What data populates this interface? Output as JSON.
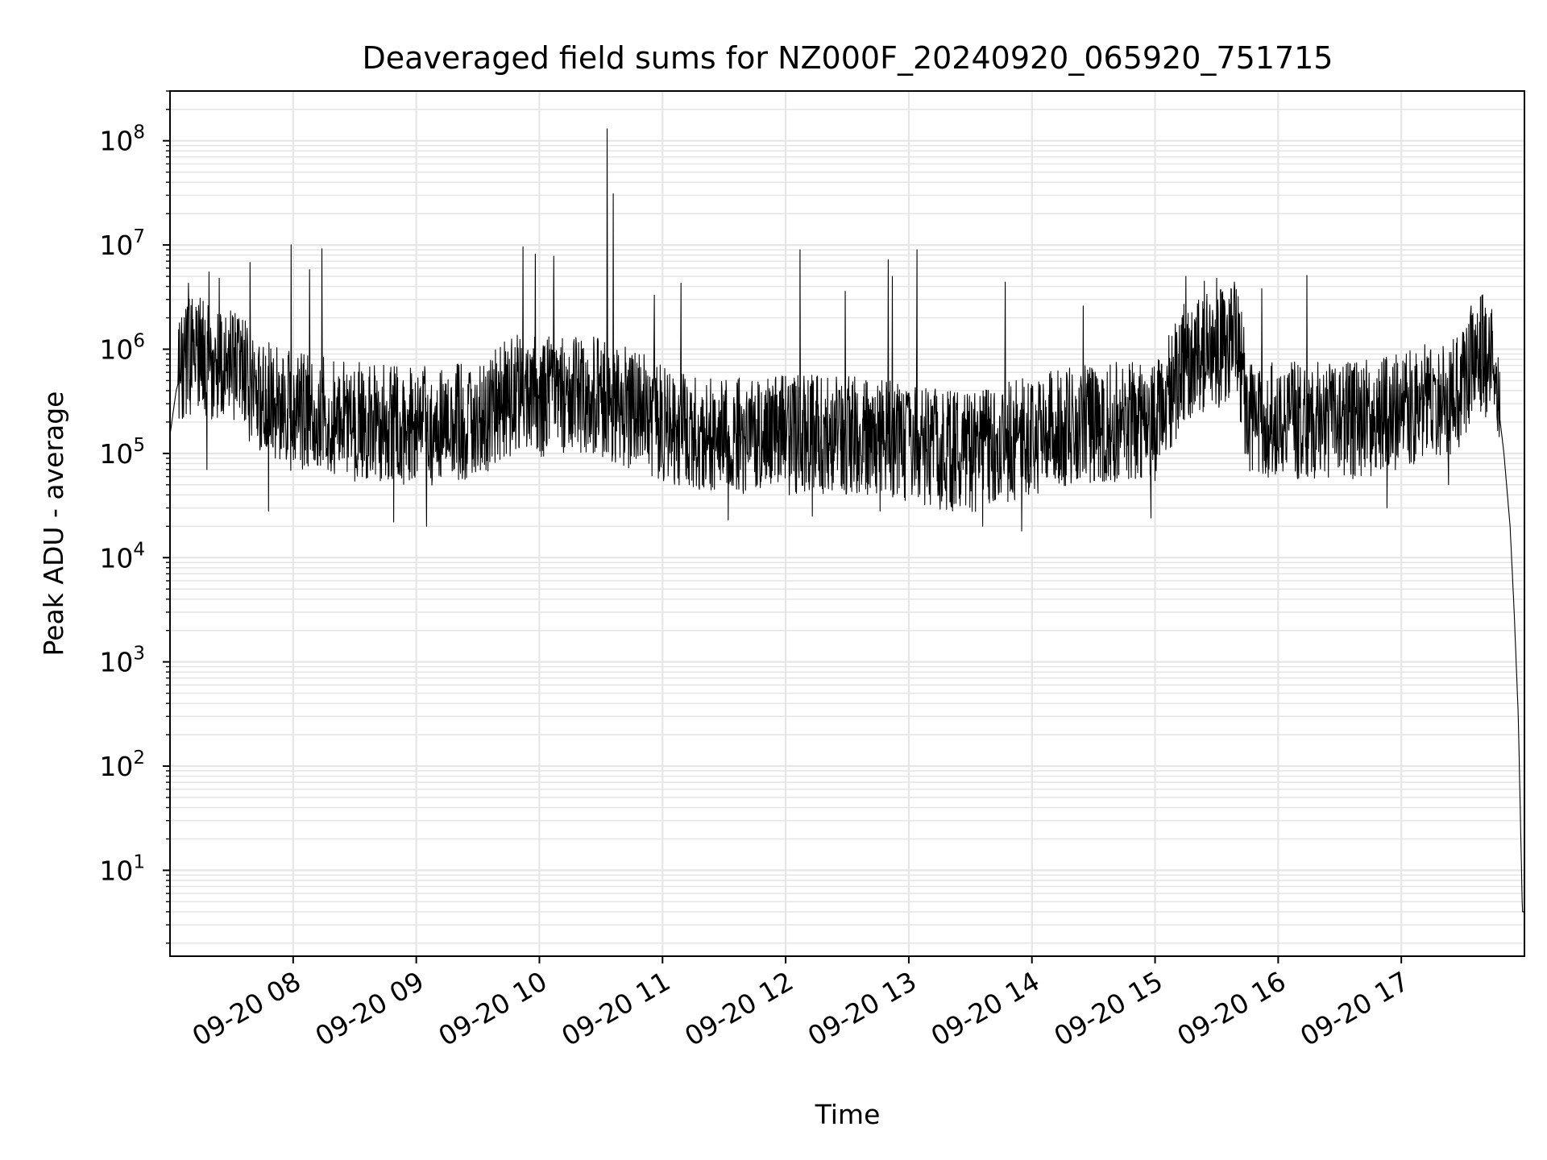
{
  "chart_data": {
    "type": "line",
    "title": "Deaveraged field sums for NZ000F_20240920_065920_751715",
    "xlabel": "Time",
    "ylabel": "Peak ADU - average",
    "yscale": "log",
    "grid": true,
    "grid_color": "#e6e6e6",
    "line_color": "#000000",
    "xlim": [
      "2024-09-20 07:00",
      "2024-09-20 18:00"
    ],
    "ylim": [
      1.5,
      300000000
    ],
    "x_ticks": [
      {
        "value": "2024-09-20 08:00",
        "label": "09-20 08"
      },
      {
        "value": "2024-09-20 09:00",
        "label": "09-20 09"
      },
      {
        "value": "2024-09-20 10:00",
        "label": "09-20 10"
      },
      {
        "value": "2024-09-20 11:00",
        "label": "09-20 11"
      },
      {
        "value": "2024-09-20 12:00",
        "label": "09-20 12"
      },
      {
        "value": "2024-09-20 13:00",
        "label": "09-20 13"
      },
      {
        "value": "2024-09-20 14:00",
        "label": "09-20 14"
      },
      {
        "value": "2024-09-20 15:00",
        "label": "09-20 15"
      },
      {
        "value": "2024-09-20 16:00",
        "label": "09-20 16"
      },
      {
        "value": "2024-09-20 17:00",
        "label": "09-20 17"
      }
    ],
    "y_ticks": [
      {
        "value": 10,
        "base": "10",
        "exp": "1"
      },
      {
        "value": 100,
        "base": "10",
        "exp": "2"
      },
      {
        "value": 1000,
        "base": "10",
        "exp": "3"
      },
      {
        "value": 10000,
        "base": "10",
        "exp": "4"
      },
      {
        "value": 100000,
        "base": "10",
        "exp": "5"
      },
      {
        "value": 1000000,
        "base": "10",
        "exp": "6"
      },
      {
        "value": 10000000,
        "base": "10",
        "exp": "7"
      },
      {
        "value": 100000000,
        "base": "10",
        "exp": "8"
      }
    ],
    "series": [
      {
        "baseline": [
          {
            "x": "2024-09-20 07:00",
            "y": 150000
          },
          {
            "x": "2024-09-20 07:03",
            "y": 400000
          },
          {
            "x": "2024-09-20 07:08",
            "y": 900000
          },
          {
            "x": "2024-09-20 07:30",
            "y": 700000
          },
          {
            "x": "2024-09-20 07:45",
            "y": 350000
          },
          {
            "x": "2024-09-20 08:00",
            "y": 250000
          },
          {
            "x": "2024-09-20 08:30",
            "y": 200000
          },
          {
            "x": "2024-09-20 09:00",
            "y": 180000
          },
          {
            "x": "2024-09-20 09:30",
            "y": 200000
          },
          {
            "x": "2024-09-20 09:50",
            "y": 400000
          },
          {
            "x": "2024-09-20 10:00",
            "y": 350000
          },
          {
            "x": "2024-09-20 10:30",
            "y": 350000
          },
          {
            "x": "2024-09-20 11:00",
            "y": 200000
          },
          {
            "x": "2024-09-20 11:30",
            "y": 150000
          },
          {
            "x": "2024-09-20 12:00",
            "y": 150000
          },
          {
            "x": "2024-09-20 12:45",
            "y": 150000
          },
          {
            "x": "2024-09-20 13:00",
            "y": 120000
          },
          {
            "x": "2024-09-20 13:30",
            "y": 100000
          },
          {
            "x": "2024-09-20 14:00",
            "y": 150000
          },
          {
            "x": "2024-09-20 14:30",
            "y": 200000
          },
          {
            "x": "2024-09-20 15:00",
            "y": 200000
          },
          {
            "x": "2024-09-20 15:15",
            "y": 800000
          },
          {
            "x": "2024-09-20 15:40",
            "y": 1200000
          },
          {
            "x": "2024-09-20 15:45",
            "y": 250000
          },
          {
            "x": "2024-09-20 16:00",
            "y": 200000
          },
          {
            "x": "2024-09-20 16:30",
            "y": 200000
          },
          {
            "x": "2024-09-20 17:00",
            "y": 250000
          },
          {
            "x": "2024-09-20 17:30",
            "y": 400000
          },
          {
            "x": "2024-09-20 17:37",
            "y": 1000000
          },
          {
            "x": "2024-09-20 17:45",
            "y": 700000
          },
          {
            "x": "2024-09-20 17:50",
            "y": 100000
          },
          {
            "x": "2024-09-20 17:53",
            "y": 20000
          },
          {
            "x": "2024-09-20 17:55",
            "y": 3000
          },
          {
            "x": "2024-09-20 17:57",
            "y": 300
          },
          {
            "x": "2024-09-20 17:59",
            "y": 4
          }
        ],
        "spikes": [
          {
            "x": "2024-09-20 07:09",
            "y": 4300000
          },
          {
            "x": "2024-09-20 07:19",
            "y": 5500000
          },
          {
            "x": "2024-09-20 07:24",
            "y": 4800000
          },
          {
            "x": "2024-09-20 07:39",
            "y": 6800000
          },
          {
            "x": "2024-09-20 07:59",
            "y": 10000000
          },
          {
            "x": "2024-09-20 08:08",
            "y": 5800000
          },
          {
            "x": "2024-09-20 08:14",
            "y": 9200000
          },
          {
            "x": "2024-09-20 09:52",
            "y": 9600000
          },
          {
            "x": "2024-09-20 09:58",
            "y": 8200000
          },
          {
            "x": "2024-09-20 10:07",
            "y": 7800000
          },
          {
            "x": "2024-09-20 10:33",
            "y": 130000000
          },
          {
            "x": "2024-09-20 10:36",
            "y": 31000000
          },
          {
            "x": "2024-09-20 10:56",
            "y": 3300000
          },
          {
            "x": "2024-09-20 11:09",
            "y": 4300000
          },
          {
            "x": "2024-09-20 12:07",
            "y": 9000000
          },
          {
            "x": "2024-09-20 12:29",
            "y": 3600000
          },
          {
            "x": "2024-09-20 12:50",
            "y": 7200000
          },
          {
            "x": "2024-09-20 12:52",
            "y": 5000000
          },
          {
            "x": "2024-09-20 13:04",
            "y": 9000000
          },
          {
            "x": "2024-09-20 13:47",
            "y": 4400000
          },
          {
            "x": "2024-09-20 14:25",
            "y": 2600000
          },
          {
            "x": "2024-09-20 15:15",
            "y": 5000000
          },
          {
            "x": "2024-09-20 15:24",
            "y": 4500000
          },
          {
            "x": "2024-09-20 15:30",
            "y": 4800000
          },
          {
            "x": "2024-09-20 15:52",
            "y": 3800000
          },
          {
            "x": "2024-09-20 16:14",
            "y": 5100000
          },
          {
            "x": "2024-09-20 17:34",
            "y": 2600000
          }
        ],
        "dips": [
          {
            "x": "2024-09-20 07:18",
            "y": 70000
          },
          {
            "x": "2024-09-20 07:48",
            "y": 28000
          },
          {
            "x": "2024-09-20 08:49",
            "y": 22000
          },
          {
            "x": "2024-09-20 09:05",
            "y": 20000
          },
          {
            "x": "2024-09-20 11:32",
            "y": 23000
          },
          {
            "x": "2024-09-20 12:13",
            "y": 25000
          },
          {
            "x": "2024-09-20 12:46",
            "y": 28000
          },
          {
            "x": "2024-09-20 13:36",
            "y": 20000
          },
          {
            "x": "2024-09-20 13:55",
            "y": 18000
          },
          {
            "x": "2024-09-20 14:58",
            "y": 24000
          },
          {
            "x": "2024-09-20 16:53",
            "y": 30000
          },
          {
            "x": "2024-09-20 17:23",
            "y": 50000
          }
        ]
      }
    ]
  }
}
